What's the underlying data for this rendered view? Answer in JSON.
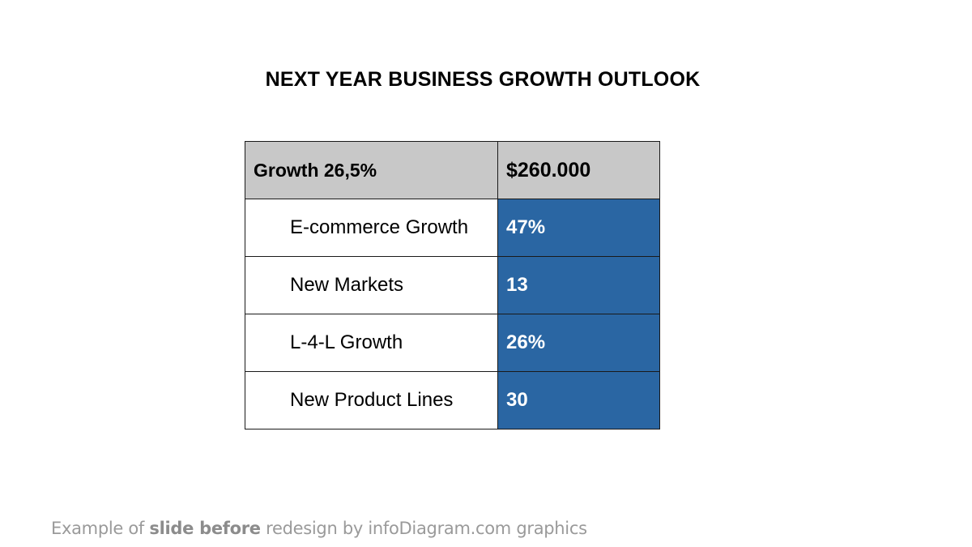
{
  "slide": {
    "title": "NEXT YEAR BUSINESS GROWTH OUTLOOK"
  },
  "table": {
    "header": {
      "label": "Growth 26,5%",
      "value": "$260.000"
    },
    "rows": [
      {
        "label": "E-commerce Growth",
        "value": "47%"
      },
      {
        "label": "New Markets",
        "value": "13"
      },
      {
        "label": "L-4-L Growth",
        "value": "26%"
      },
      {
        "label": "New Product Lines",
        "value": "30"
      }
    ]
  },
  "footer": {
    "prefix": "Example of ",
    "emphasis": "slide before",
    "suffix": " redesign by infoDiagram.com graphics"
  },
  "colors": {
    "header_bg": "#c8c8c8",
    "value_bg": "#2a66a3",
    "footer_text": "#9a9a9a"
  }
}
